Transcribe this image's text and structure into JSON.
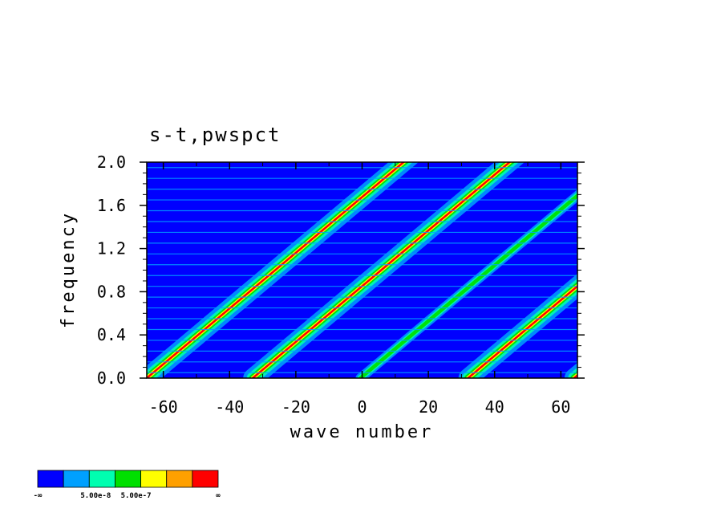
{
  "chart_data": {
    "type": "heatmap",
    "title": "s-t,pwspct",
    "xlabel": "wave number",
    "ylabel": "frequency",
    "xlim": [
      -65,
      65
    ],
    "ylim": [
      0.0,
      2.0
    ],
    "xticks": [
      "-60",
      "-40",
      "-20",
      "0",
      "20",
      "40",
      "60"
    ],
    "xtick_values": [
      -60,
      -40,
      -20,
      0,
      20,
      40,
      60
    ],
    "yticks": [
      "0.0",
      "0.4",
      "0.8",
      "1.2",
      "1.6",
      "2.0"
    ],
    "ytick_values": [
      0.0,
      0.4,
      0.8,
      1.2,
      1.6,
      2.0
    ],
    "background_color": "#0000ff",
    "ridge_slope_frequency_per_wavenumber": 0.0258,
    "ridges": [
      {
        "wave_number_at_zero_frequency": -65,
        "intensity": 1.0
      },
      {
        "wave_number_at_zero_frequency": -33,
        "intensity": 0.9
      },
      {
        "wave_number_at_zero_frequency": -0.5,
        "intensity": 0.55
      },
      {
        "wave_number_at_zero_frequency": 32,
        "intensity": 0.9
      },
      {
        "wave_number_at_zero_frequency": 64,
        "intensity": 1.0
      }
    ],
    "harmonic_frequency_lines": [
      0.05,
      0.15,
      0.25,
      0.35,
      0.45,
      0.55,
      0.65,
      0.75,
      0.85,
      0.95,
      1.05,
      1.15,
      1.25,
      1.35,
      1.45,
      1.55,
      1.65,
      1.75,
      1.85,
      1.95
    ],
    "colorbar": {
      "colors": [
        "#0000ff",
        "#00a0ff",
        "#00ffb0",
        "#00e000",
        "#ffff00",
        "#ffa000",
        "#ff0000"
      ],
      "labels": [
        "-∞",
        "5.00e-8",
        "5.00e-7",
        "∞"
      ]
    }
  }
}
